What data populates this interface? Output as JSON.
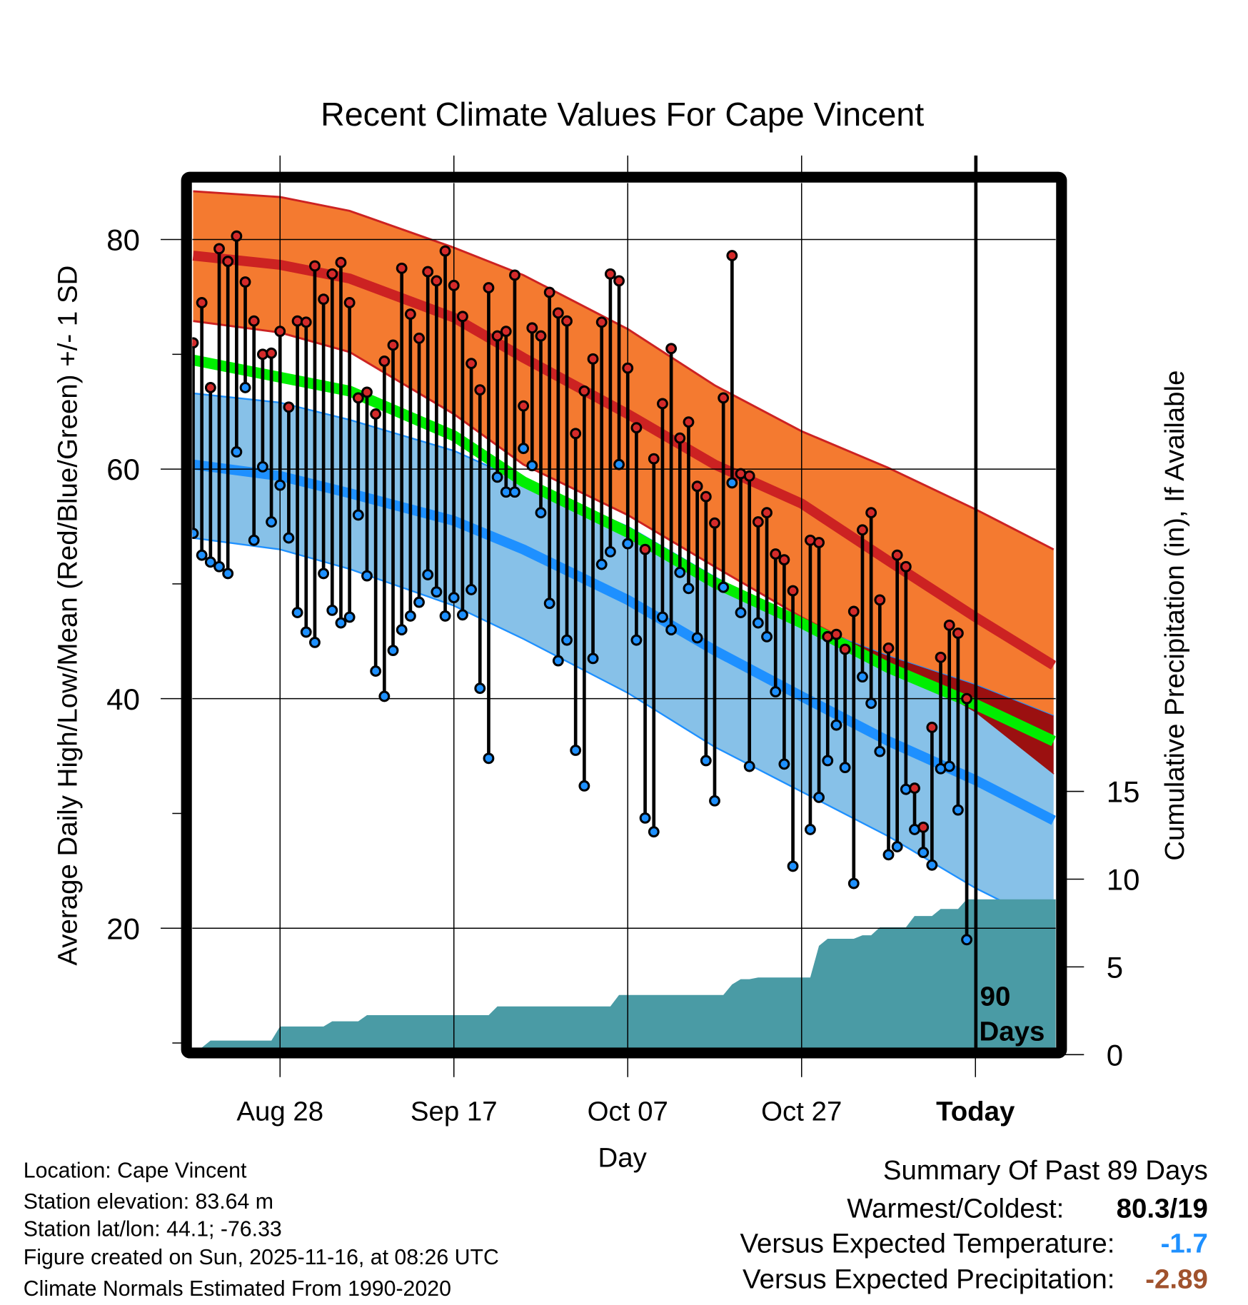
{
  "chart_data": {
    "type": "line",
    "title": "Recent Climate Values For Cape Vincent",
    "ylabel": "Average Daily High/Low/Mean (Red/Blue/Green) +/- 1 SD",
    "y2label": "Cumulative Precipitation (in), If Available",
    "xlabel": "Day",
    "ylim": [
      9.5,
      85
    ],
    "y2lim": [
      0,
      25
    ],
    "xlim": [
      -90,
      9
    ],
    "grid": true,
    "yticks": [
      20,
      40,
      60,
      80
    ],
    "yticks_minor": [
      10,
      30,
      50,
      70
    ],
    "y2ticks": [
      0,
      5,
      10,
      15
    ],
    "xticks": [
      {
        "day": -80,
        "label": "Aug 28"
      },
      {
        "day": -60,
        "label": "Sep 17"
      },
      {
        "day": -40,
        "label": "Oct 07"
      },
      {
        "day": -20,
        "label": "Oct 27"
      },
      {
        "day": 0,
        "label": "Today"
      }
    ],
    "annotation": {
      "line1": "90",
      "line2": "Days",
      "day": 0
    },
    "colors": {
      "high_band": "#f47a30",
      "high_mean": "#cc2222",
      "overlap": "#9b1010",
      "mean": "#00ee00",
      "low_band": "#87c1e8",
      "low_mean": "#1e90ff",
      "precip": "#4a9ba5",
      "high_point": "#d42a2a",
      "low_point": "#1e90ff"
    },
    "normals": {
      "day": [
        -90,
        -80,
        -72,
        -60,
        -52,
        -40,
        -30,
        -20,
        -10,
        0,
        9
      ],
      "high_plus_sd": [
        84.2,
        83.7,
        82.5,
        79.3,
        76.9,
        72.2,
        67.3,
        63.3,
        60.1,
        56.5,
        53.0
      ],
      "high_mean": [
        78.6,
        77.8,
        76.6,
        73.2,
        69.7,
        64.8,
        60.4,
        57.0,
        52.0,
        47.1,
        42.9
      ],
      "high_minus_sd": [
        72.9,
        71.9,
        70.2,
        64.8,
        60.4,
        56.0,
        51.5,
        47.1,
        43.2,
        38.8,
        33.4
      ],
      "mean": [
        69.5,
        68.0,
        66.8,
        62.9,
        58.9,
        54.5,
        50.1,
        46.6,
        42.7,
        39.5,
        36.3
      ],
      "low_plus_sd": [
        66.6,
        65.8,
        64.3,
        61.6,
        58.9,
        55.0,
        50.6,
        46.6,
        43.7,
        41.2,
        38.5
      ],
      "low_mean": [
        60.4,
        59.4,
        57.9,
        55.5,
        53.0,
        48.6,
        44.2,
        40.2,
        36.3,
        32.9,
        29.4
      ],
      "low_minus_sd": [
        54.0,
        53.0,
        51.3,
        48.1,
        45.2,
        40.5,
        35.8,
        31.9,
        28.0,
        23.5,
        20.1
      ]
    },
    "daily_start_day": -90,
    "highs": [
      71.0,
      74.5,
      67.1,
      79.2,
      78.1,
      80.3,
      76.3,
      72.9,
      70.0,
      70.1,
      72.0,
      65.4,
      72.9,
      72.8,
      77.7,
      74.8,
      77.0,
      78.0,
      74.5,
      66.2,
      66.7,
      64.8,
      69.4,
      70.8,
      77.5,
      73.5,
      71.4,
      77.2,
      76.4,
      79.0,
      76.0,
      73.3,
      69.2,
      66.9,
      75.8,
      71.6,
      72.0,
      76.9,
      65.5,
      72.3,
      71.6,
      75.4,
      73.6,
      72.9,
      63.1,
      66.8,
      69.6,
      72.8,
      77.0,
      76.4,
      68.8,
      63.6,
      53.0,
      60.9,
      65.7,
      70.5,
      62.7,
      64.1,
      58.5,
      57.6,
      55.3,
      66.2,
      78.6,
      59.6,
      59.4,
      55.4,
      56.2,
      52.6,
      52.1,
      49.4,
      null,
      53.8,
      53.6,
      45.4,
      45.6,
      44.3,
      47.6,
      54.7,
      56.2,
      48.6,
      44.4,
      52.5,
      51.5,
      32.2,
      28.8,
      37.5,
      43.6,
      46.4,
      45.7,
      40.0
    ],
    "lows": [
      54.4,
      52.5,
      51.9,
      51.5,
      50.9,
      61.5,
      67.1,
      53.8,
      60.2,
      55.4,
      58.6,
      54.0,
      47.5,
      45.8,
      44.9,
      50.9,
      47.7,
      46.6,
      47.1,
      56.0,
      50.7,
      42.4,
      40.2,
      44.2,
      46.0,
      47.2,
      48.4,
      50.8,
      49.3,
      47.2,
      48.8,
      47.3,
      49.5,
      40.9,
      34.8,
      59.3,
      58.0,
      58.0,
      61.8,
      60.3,
      56.2,
      48.3,
      43.3,
      45.1,
      35.5,
      32.4,
      43.5,
      51.7,
      52.8,
      60.4,
      53.5,
      45.1,
      29.6,
      28.4,
      47.1,
      46.0,
      51.0,
      49.6,
      45.3,
      34.6,
      31.1,
      49.7,
      58.8,
      47.5,
      34.1,
      46.6,
      45.4,
      40.6,
      34.3,
      25.4,
      null,
      28.6,
      31.4,
      34.6,
      37.7,
      34.0,
      23.9,
      41.9,
      39.6,
      35.4,
      26.4,
      27.1,
      32.1,
      28.6,
      26.6,
      25.5,
      33.9,
      34.1,
      30.3,
      19.0
    ],
    "precip_cumulative": [
      0,
      0.4,
      0.8,
      0.8,
      0.8,
      0.8,
      0.8,
      0.8,
      0.8,
      0.8,
      1.6,
      1.6,
      1.6,
      1.6,
      1.6,
      1.6,
      1.9,
      1.9,
      1.9,
      1.9,
      2.25,
      2.25,
      2.25,
      2.25,
      2.25,
      2.25,
      2.25,
      2.25,
      2.25,
      2.25,
      2.25,
      2.25,
      2.25,
      2.25,
      2.25,
      2.75,
      2.75,
      2.75,
      2.75,
      2.75,
      2.75,
      2.75,
      2.75,
      2.75,
      2.75,
      2.75,
      2.75,
      2.75,
      2.75,
      3.4,
      3.4,
      3.4,
      3.4,
      3.4,
      3.4,
      3.4,
      3.4,
      3.4,
      3.4,
      3.4,
      3.4,
      3.4,
      4.0,
      4.3,
      4.3,
      4.4,
      4.4,
      4.4,
      4.4,
      4.4,
      4.4,
      4.4,
      6.2,
      6.6,
      6.6,
      6.6,
      6.6,
      6.8,
      6.8,
      7.25,
      7.25,
      7.25,
      7.25,
      7.9,
      7.9,
      7.9,
      8.3,
      8.3,
      8.3,
      8.85
    ]
  },
  "info": {
    "location": "Location: Cape Vincent",
    "elevation": "Station elevation: 83.64 m",
    "latlon": "Station lat/lon: 44.1; -76.33",
    "created": "Figure created on Sun, 2025-11-16, at 08:26 UTC",
    "normals": "Climate Normals Estimated From 1990-2020"
  },
  "summary": {
    "heading": "Summary Of Past 89 Days",
    "warmest_coldest_label": "Warmest/Coldest:",
    "warmest_coldest_value": "80.3/19",
    "temp_label": "Versus Expected Temperature:",
    "temp_value": "-1.7",
    "temp_color": "#1e90ff",
    "precip_label": "Versus Expected Precipitation:",
    "precip_value": "-2.89",
    "precip_color": "#a0522d"
  }
}
